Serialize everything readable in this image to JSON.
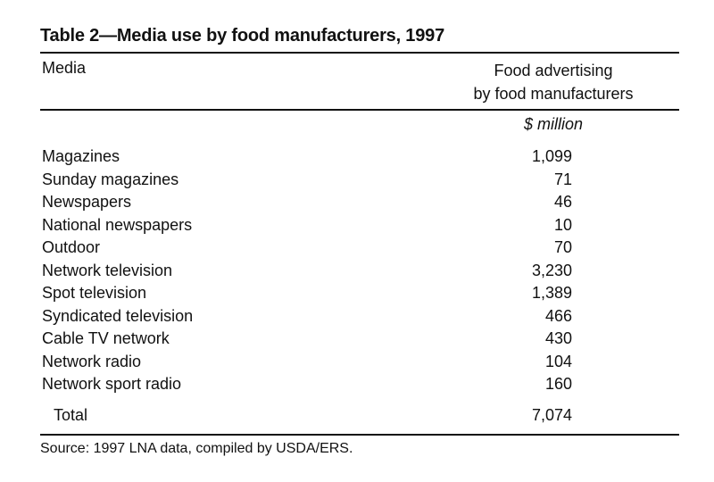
{
  "table": {
    "title": "Table 2—Media use by food manufacturers, 1997",
    "header": {
      "media": "Media",
      "value_line1": "Food advertising",
      "value_line2": "by food manufacturers"
    },
    "unit": "$ million",
    "rows": [
      {
        "label": "Magazines",
        "value": "1,099"
      },
      {
        "label": "Sunday magazines",
        "value": "71"
      },
      {
        "label": "Newspapers",
        "value": "46"
      },
      {
        "label": "National newspapers",
        "value": "10"
      },
      {
        "label": "Outdoor",
        "value": "70"
      },
      {
        "label": "Network television",
        "value": "3,230"
      },
      {
        "label": "Spot television",
        "value": "1,389"
      },
      {
        "label": "Syndicated television",
        "value": "466"
      },
      {
        "label": "Cable TV network",
        "value": "430"
      },
      {
        "label": "Network radio",
        "value": "104"
      },
      {
        "label": "Network sport radio",
        "value": "160"
      }
    ],
    "total": {
      "label": "Total",
      "value": "7,074"
    },
    "source": "Source: 1997 LNA data, compiled by USDA/ERS."
  }
}
